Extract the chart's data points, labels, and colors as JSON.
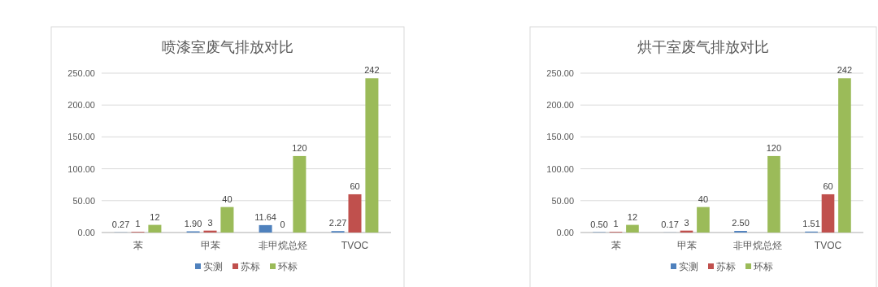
{
  "chart_data": [
    {
      "type": "bar",
      "title": "喷漆室废气排放对比",
      "categories": [
        "苯",
        "甲苯",
        "非甲烷总烃",
        "TVOC"
      ],
      "series": [
        {
          "name": "实测",
          "color": "#4f81bd",
          "values": [
            0.27,
            1.9,
            11.64,
            2.27
          ],
          "value_labels": [
            "0.27",
            "1.90",
            "11.64",
            "2.27"
          ]
        },
        {
          "name": "苏标",
          "color": "#c0504d",
          "values": [
            1,
            3,
            0,
            60
          ],
          "value_labels": [
            "1",
            "3",
            "0",
            "60"
          ]
        },
        {
          "name": "环标",
          "color": "#9bbb59",
          "values": [
            12,
            40,
            120,
            242
          ],
          "value_labels": [
            "12",
            "40",
            "120",
            "242"
          ]
        }
      ],
      "ylim": [
        0,
        250
      ],
      "yticks": [
        {
          "value": 0,
          "label": "0.00"
        },
        {
          "value": 50,
          "label": "50.00"
        },
        {
          "value": 100,
          "label": "100.00"
        },
        {
          "value": 150,
          "label": "150.00"
        },
        {
          "value": 200,
          "label": "200.00"
        },
        {
          "value": 250,
          "label": "250.00"
        }
      ],
      "grid": "y",
      "legend": "bottom"
    },
    {
      "type": "bar",
      "title": "烘干室废气排放对比",
      "categories": [
        "苯",
        "甲苯",
        "非甲烷总烃",
        "TVOC"
      ],
      "series": [
        {
          "name": "实测",
          "color": "#4f81bd",
          "values": [
            0.5,
            0.17,
            2.5,
            1.51
          ],
          "value_labels": [
            "0.50",
            "0.17",
            "2.50",
            "1.51"
          ]
        },
        {
          "name": "苏标",
          "color": "#c0504d",
          "values": [
            1,
            3,
            null,
            60
          ],
          "value_labels": [
            "1",
            "3",
            null,
            "60"
          ]
        },
        {
          "name": "环标",
          "color": "#9bbb59",
          "values": [
            12,
            40,
            120,
            242
          ],
          "value_labels": [
            "12",
            "40",
            "120",
            "242"
          ]
        }
      ],
      "ylim": [
        0,
        250
      ],
      "yticks": [
        {
          "value": 0,
          "label": "0.00"
        },
        {
          "value": 50,
          "label": "50.00"
        },
        {
          "value": 100,
          "label": "100.00"
        },
        {
          "value": 150,
          "label": "150.00"
        },
        {
          "value": 200,
          "label": "200.00"
        },
        {
          "value": 250,
          "label": "250.00"
        }
      ],
      "grid": "y",
      "legend": "bottom"
    }
  ]
}
